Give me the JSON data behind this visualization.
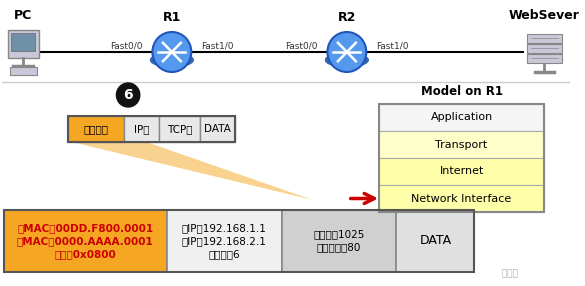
{
  "bg_color": "#ffffff",
  "pc_label": "PC",
  "ws_label": "WebSever",
  "r1_label": "R1",
  "r2_label": "R2",
  "r1_ports": [
    "Fast0/0",
    "Fast1/0"
  ],
  "r2_ports": [
    "Fast0/0",
    "Fast1/0"
  ],
  "step_number": "6",
  "model_title": "Model on R1",
  "model_layers": [
    "Application",
    "Transport",
    "Internet",
    "Network Interface"
  ],
  "model_layer_colors": [
    "#f5f5f5",
    "#ffffcc",
    "#ffffaa",
    "#ffffaa"
  ],
  "packet_labels": [
    "以太网头",
    "IP头",
    "TCP头",
    "DATA"
  ],
  "packet_colors": [
    "#f5a623",
    "#e8e8e8",
    "#e8e8e8",
    "#e8e8e8"
  ],
  "cell1_label": "源MAC：00DD.F800.0001\n目MAC：0000.AAAA.0001\n类型：0x0800",
  "cell1_color": "#f5a623",
  "cell1_text_color": "#cc0000",
  "cell2_label": "源IP：192.168.1.1\n目IP：192.168.2.1\n协议号：6",
  "cell2_color": "#f0f0f0",
  "cell2_text_color": "#000000",
  "cell3_label": "源端口号1025\n目的端口号80",
  "cell3_color": "#d0d0d0",
  "cell3_text_color": "#000000",
  "cell4_label": "DATA",
  "cell4_color": "#e0e0e0",
  "cell4_text_color": "#000000",
  "arrow_color": "#cc0000",
  "orange_color": "#f5a623"
}
